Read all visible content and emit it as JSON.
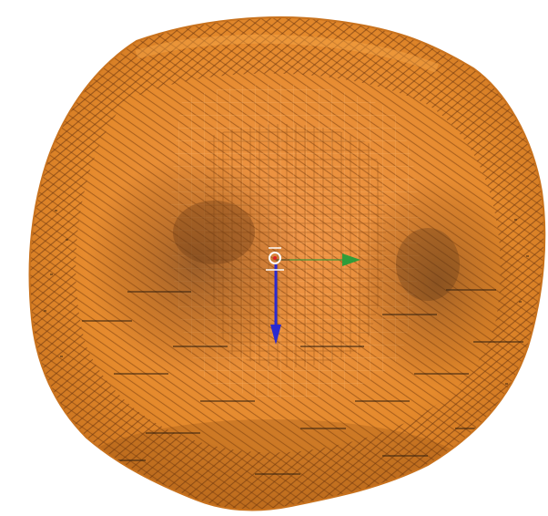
{
  "viewport": {
    "background": "#ffffff"
  },
  "mesh": {
    "base_color": "#e58a2c",
    "wire_color": "#8a4a12",
    "highlight_color": "#f6a64a",
    "shadow_color": "#5a3418",
    "edge_dots_color": "#3a2410",
    "render_mode": "wireframe-shaded"
  },
  "gizmo": {
    "x_axis_color": "#e02020",
    "y_axis_color": "#2e9d3a",
    "z_axis_color": "#2a2ad0",
    "center_color": "#ffffff",
    "icon": "transform-gizmo-icon"
  }
}
